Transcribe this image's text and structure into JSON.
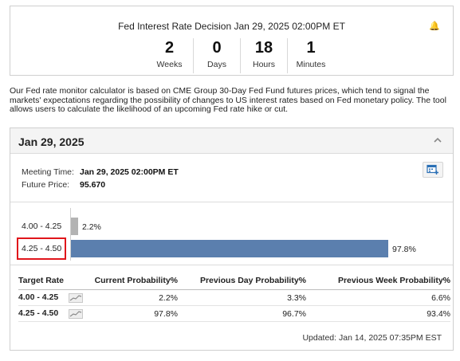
{
  "countdown": {
    "title": "Fed Interest Rate Decision Jan 29, 2025 02:00PM ET",
    "units": [
      {
        "value": "2",
        "label": "Weeks"
      },
      {
        "value": "0",
        "label": "Days"
      },
      {
        "value": "18",
        "label": "Hours"
      },
      {
        "value": "1",
        "label": "Minutes"
      }
    ],
    "icon": "bell-icon"
  },
  "intro_text": "Our Fed rate monitor calculator is based on CME Group 30-Day Fed Fund futures prices, which tend to signal the markets' expectations regarding the possibility of changes to US interest rates based on Fed monetary policy. The tool allows users to calculate the likelihood of an upcoming Fed rate hike or cut.",
  "meeting": {
    "title": "Jan 29, 2025",
    "meeting_time_label": "Meeting Time:",
    "meeting_time_value": "Jan 29, 2025 02:00PM ET",
    "future_price_label": "Future Price:",
    "future_price_value": "95.670"
  },
  "chart_data": {
    "type": "bar",
    "orientation": "horizontal",
    "categories": [
      "4.00 - 4.25",
      "4.25 - 4.50"
    ],
    "values": [
      2.2,
      97.8
    ],
    "value_labels": [
      "2.2%",
      "97.8%"
    ],
    "colors": [
      "#b3b3b3",
      "#5b7fae"
    ],
    "highlighted_category": "4.25 - 4.50",
    "xlim": [
      0,
      100
    ]
  },
  "table": {
    "headers": [
      "Target Rate",
      "Current Probability%",
      "Previous Day Probability%",
      "Previous Week Probability%"
    ],
    "rows": [
      {
        "rate": "4.00 - 4.25",
        "current": "2.2%",
        "prev_day": "3.3%",
        "prev_week": "6.6%"
      },
      {
        "rate": "4.25 - 4.50",
        "current": "97.8%",
        "prev_day": "96.7%",
        "prev_week": "93.4%"
      }
    ]
  },
  "updated": "Updated: Jan 14, 2025 07:35PM EST",
  "colors": {
    "accent": "#2a6fb5",
    "bar_primary": "#5b7fae",
    "bar_secondary": "#b3b3b3",
    "highlight": "#e0161b"
  }
}
